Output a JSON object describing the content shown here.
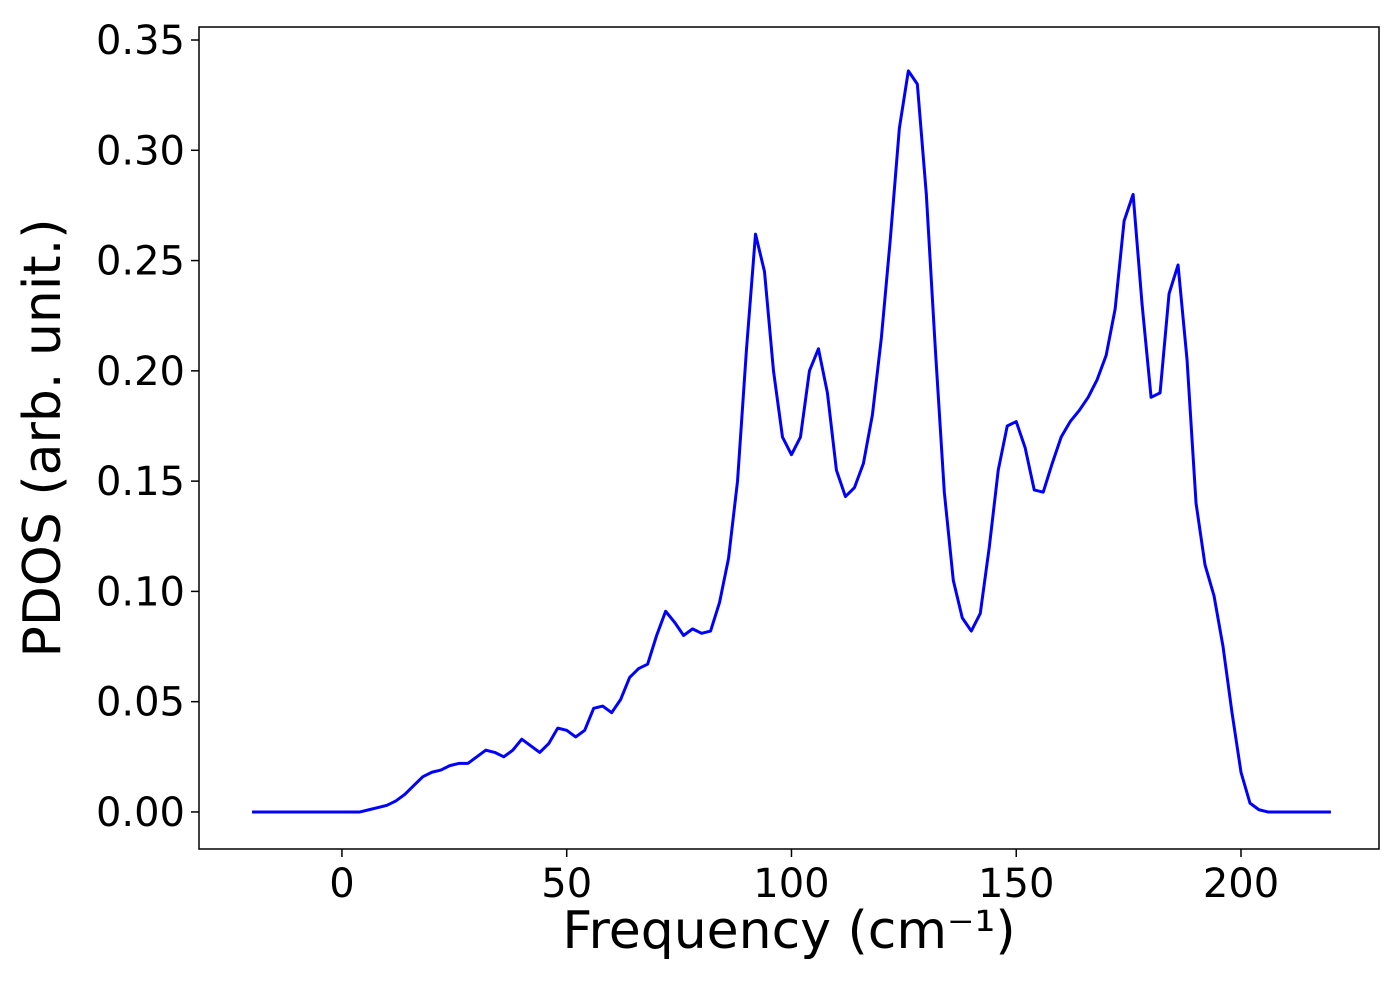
{
  "chart_data": {
    "type": "line",
    "xlabel": "Frequency (cm⁻¹)",
    "ylabel": "PDOS (arb. unit.)",
    "x": [
      -20,
      -18,
      -16,
      -14,
      -12,
      -10,
      -8,
      -6,
      -4,
      -2,
      0,
      2,
      4,
      6,
      8,
      10,
      12,
      14,
      16,
      18,
      20,
      22,
      24,
      26,
      28,
      30,
      32,
      34,
      36,
      38,
      40,
      42,
      44,
      46,
      48,
      50,
      52,
      54,
      56,
      58,
      60,
      62,
      64,
      66,
      68,
      70,
      72,
      74,
      76,
      78,
      80,
      82,
      84,
      86,
      88,
      90,
      92,
      94,
      96,
      98,
      100,
      102,
      104,
      106,
      108,
      110,
      112,
      114,
      116,
      118,
      120,
      122,
      124,
      126,
      128,
      130,
      132,
      134,
      136,
      138,
      140,
      142,
      144,
      146,
      148,
      150,
      152,
      154,
      156,
      158,
      160,
      162,
      164,
      166,
      168,
      170,
      172,
      174,
      176,
      178,
      180,
      182,
      184,
      186,
      188,
      190,
      192,
      194,
      196,
      198,
      200,
      202,
      204,
      206,
      208,
      210,
      212,
      214,
      216,
      218,
      220
    ],
    "series": [
      {
        "name": "PDOS",
        "color": "#0000ff",
        "values": [
          0,
          0,
          0,
          0,
          0,
          0,
          0,
          0,
          0,
          0,
          0,
          0,
          0,
          0.001,
          0.002,
          0.003,
          0.005,
          0.008,
          0.012,
          0.016,
          0.018,
          0.019,
          0.021,
          0.022,
          0.022,
          0.025,
          0.028,
          0.027,
          0.025,
          0.028,
          0.033,
          0.03,
          0.027,
          0.031,
          0.038,
          0.037,
          0.034,
          0.037,
          0.047,
          0.048,
          0.045,
          0.051,
          0.061,
          0.065,
          0.067,
          0.08,
          0.091,
          0.086,
          0.08,
          0.083,
          0.081,
          0.082,
          0.095,
          0.115,
          0.15,
          0.21,
          0.262,
          0.245,
          0.2,
          0.17,
          0.162,
          0.17,
          0.2,
          0.21,
          0.19,
          0.155,
          0.143,
          0.147,
          0.158,
          0.18,
          0.215,
          0.26,
          0.31,
          0.336,
          0.33,
          0.28,
          0.21,
          0.145,
          0.105,
          0.088,
          0.082,
          0.09,
          0.12,
          0.155,
          0.175,
          0.177,
          0.165,
          0.146,
          0.145,
          0.158,
          0.17,
          0.177,
          0.182,
          0.188,
          0.196,
          0.207,
          0.228,
          0.268,
          0.28,
          0.23,
          0.188,
          0.19,
          0.235,
          0.248,
          0.205,
          0.14,
          0.112,
          0.098,
          0.075,
          0.045,
          0.018,
          0.004,
          0.001,
          0,
          0,
          0,
          0,
          0,
          0,
          0,
          0
        ]
      }
    ],
    "xlim": [
      -31.8,
      230.7
    ],
    "ylim": [
      -0.0168,
      0.3559
    ],
    "xticks": [
      0,
      50,
      100,
      150,
      200
    ],
    "yticks": [
      {
        "value": 0,
        "label": "0.00"
      },
      {
        "value": 0.05,
        "label": "0.05"
      },
      {
        "value": 0.1,
        "label": "0.10"
      },
      {
        "value": 0.15,
        "label": "0.15"
      },
      {
        "value": 0.2,
        "label": "0.20"
      },
      {
        "value": 0.25,
        "label": "0.25"
      },
      {
        "value": 0.3,
        "label": "0.30"
      },
      {
        "value": 0.35,
        "label": "0.35"
      }
    ],
    "grid": false
  }
}
